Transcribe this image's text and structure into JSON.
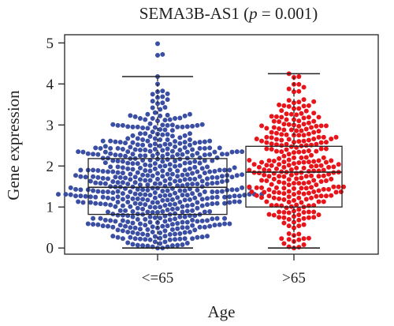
{
  "chart_data": {
    "type": "beeswarm-boxplot",
    "title": "SEMA3B-AS1 (",
    "title_p": "p",
    "title_rest": " = 0.001)",
    "xlabel": "Age",
    "ylabel": "Gene expression",
    "ylim": [
      -0.15,
      5.2
    ],
    "yticks": [
      "0",
      "1",
      "2",
      "3",
      "4",
      "5"
    ],
    "grid": false,
    "legend": "none",
    "categories": [
      "<=65",
      ">65"
    ],
    "groups": [
      {
        "name": "<=65",
        "color": "#3a4ea3",
        "n_points": 560,
        "min": 0.0,
        "q1": 0.82,
        "median": 1.48,
        "q3": 2.18,
        "max": 4.18,
        "box_whisker_top": 4.18,
        "box_whisker_bottom": 0.0,
        "outliers": [
          4.7,
          4.72,
          4.98
        ]
      },
      {
        "name": ">65",
        "color": "#e8141a",
        "n_points": 290,
        "min": 0.0,
        "q1": 1.0,
        "median": 1.85,
        "q3": 2.48,
        "max": 4.25,
        "box_whisker_top": 4.25,
        "box_whisker_bottom": 0.0,
        "outliers": []
      }
    ]
  }
}
